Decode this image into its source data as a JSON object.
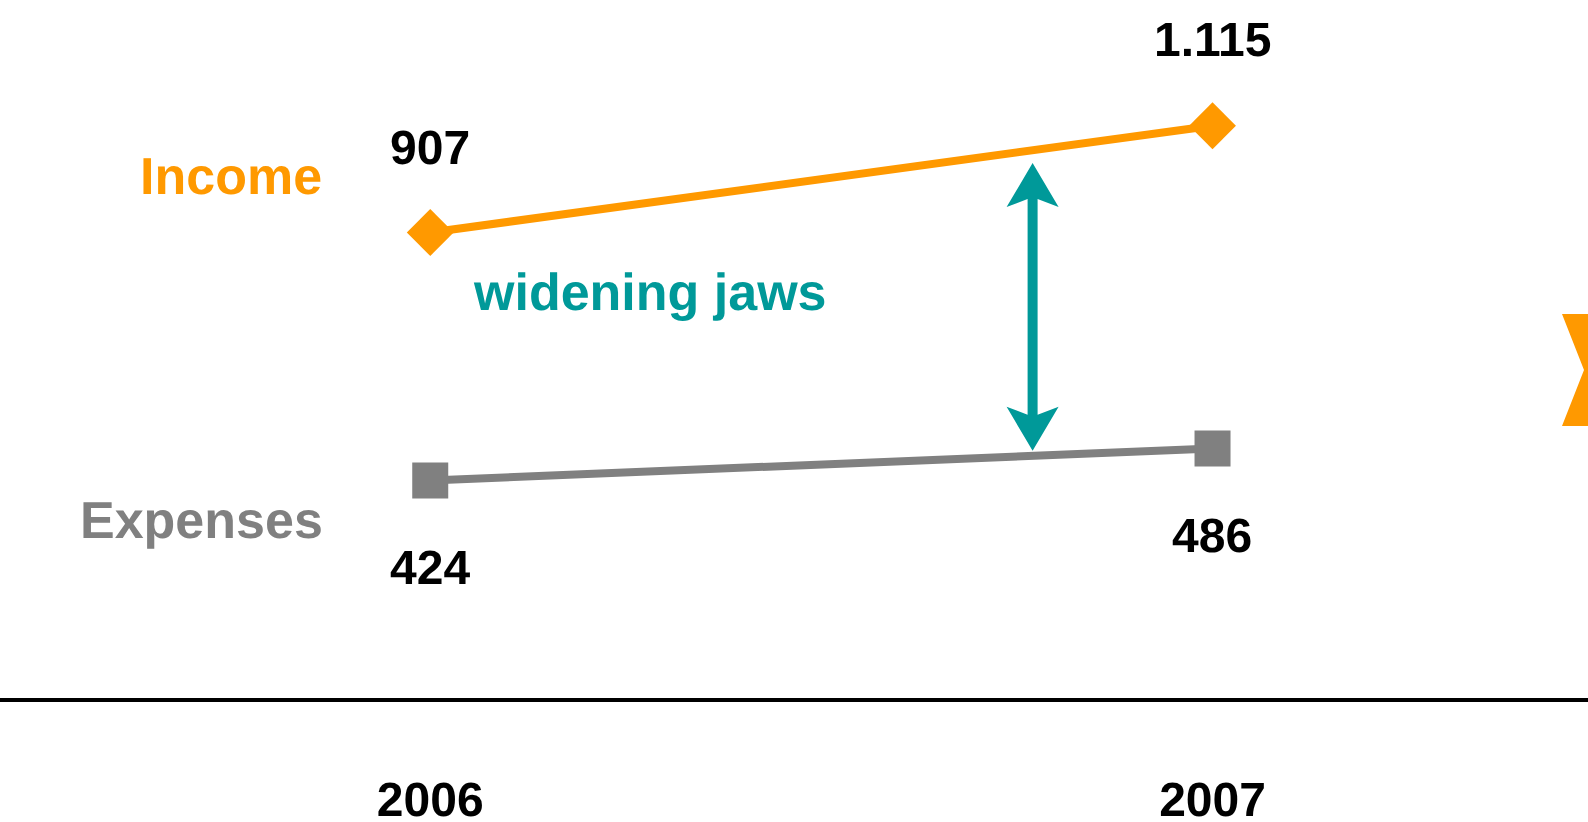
{
  "chart_data": {
    "type": "line",
    "categories": [
      "2006",
      "2007"
    ],
    "series": [
      {
        "name": "Income",
        "color": "#ff9900",
        "values": [
          907,
          1115
        ],
        "value_labels": [
          "907",
          "1.115"
        ],
        "marker": "diamond"
      },
      {
        "name": "Expenses",
        "color": "#808080",
        "values": [
          424,
          486
        ],
        "value_labels": [
          "424",
          "486"
        ],
        "marker": "square"
      }
    ],
    "annotations": [
      "widening jaws"
    ],
    "grid": false,
    "legend": false,
    "tick_labels": "x",
    "line_style": "solid"
  }
}
